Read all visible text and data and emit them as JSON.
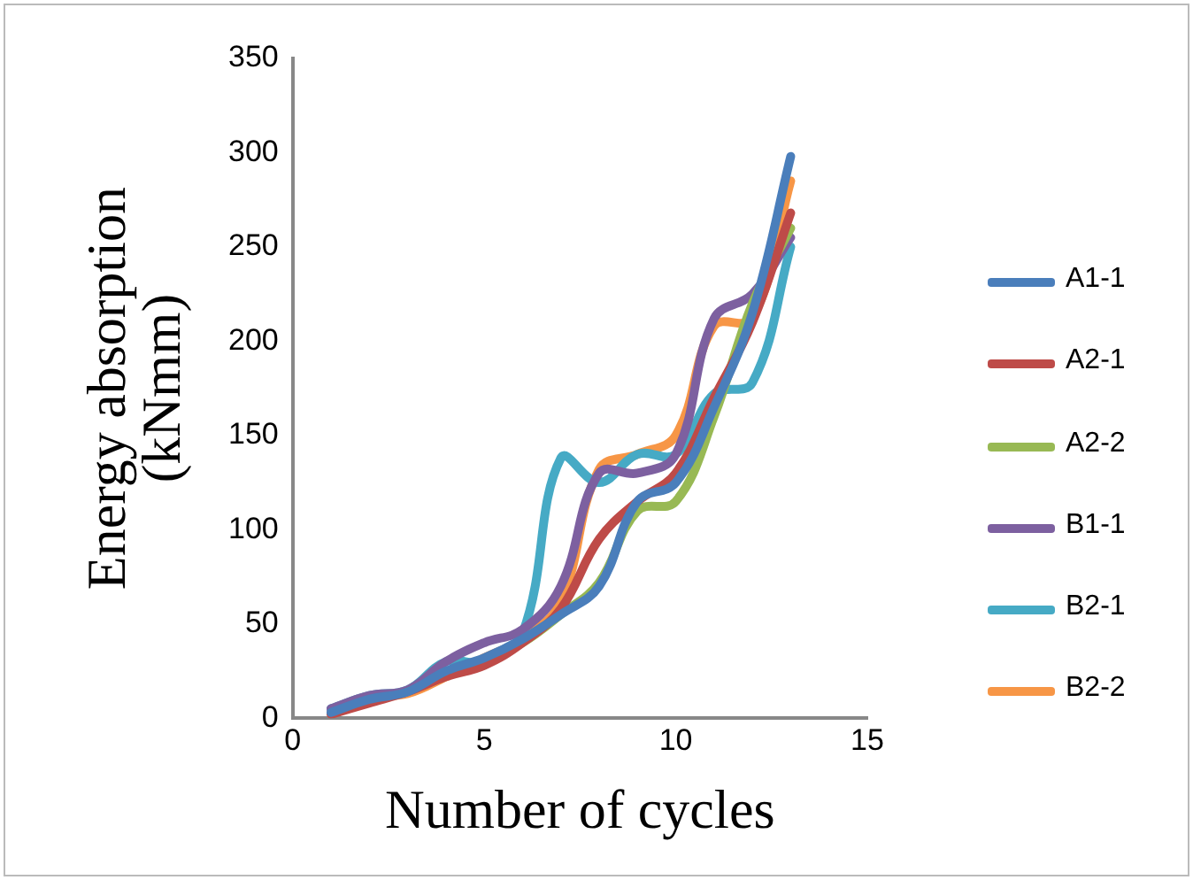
{
  "chart_data": {
    "type": "line",
    "xlabel": "Number of cycles",
    "ylabel": "Energy absorption (kNmm)",
    "x": [
      1,
      2,
      3,
      4,
      5,
      6,
      7,
      8,
      9,
      10,
      11,
      12,
      13
    ],
    "series": [
      {
        "name": "A1-1",
        "color": "#4a7ebb",
        "values": [
          3,
          10,
          14,
          25,
          32,
          42,
          55,
          70,
          115,
          125,
          165,
          215,
          298
        ]
      },
      {
        "name": "A2-1",
        "color": "#be4b48",
        "values": [
          2,
          8,
          14,
          22,
          28,
          40,
          58,
          95,
          115,
          130,
          170,
          210,
          268
        ]
      },
      {
        "name": "A2-2",
        "color": "#98b954",
        "values": [
          null,
          null,
          null,
          null,
          30,
          40,
          55,
          72,
          110,
          115,
          160,
          220,
          260
        ]
      },
      {
        "name": "B1-1",
        "color": "#7d60a0",
        "values": [
          5,
          12,
          15,
          30,
          40,
          47,
          70,
          130,
          130,
          140,
          212,
          225,
          255
        ]
      },
      {
        "name": "B2-1",
        "color": "#46aac5",
        "values": [
          5,
          12,
          15,
          30,
          30,
          45,
          138,
          125,
          140,
          140,
          172,
          178,
          250
        ]
      },
      {
        "name": "B2-2",
        "color": "#f79646",
        "values": [
          3,
          11,
          13,
          22,
          32,
          42,
          62,
          132,
          140,
          150,
          208,
          212,
          285
        ]
      }
    ],
    "xlim": [
      0,
      15
    ],
    "xticks": [
      0,
      5,
      10,
      15
    ],
    "ylim": [
      0,
      350
    ],
    "yticks": [
      0,
      50,
      100,
      150,
      200,
      250,
      300,
      350
    ],
    "grid": false,
    "legend": "right",
    "marker": "none",
    "line_style": "solid"
  }
}
